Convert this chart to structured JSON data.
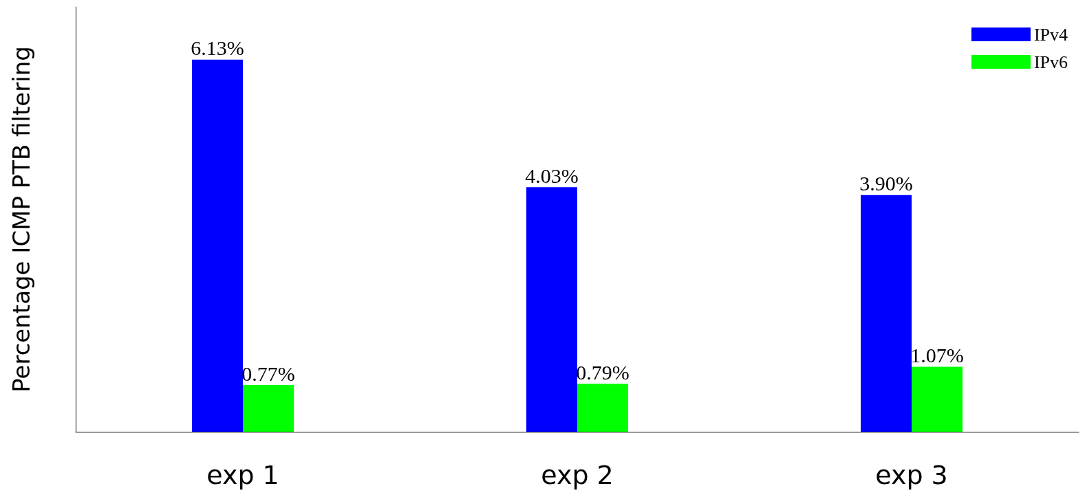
{
  "chart_data": {
    "type": "bar",
    "ylabel": "Percentage ICMP PTB filtering",
    "categories": [
      "exp 1",
      "exp 2",
      "exp 3"
    ],
    "series": [
      {
        "name": "IPv4",
        "color": "#0000ff",
        "values": [
          6.13,
          4.03,
          3.9
        ],
        "value_labels": [
          "6.13%",
          "4.03%",
          "3.90%"
        ]
      },
      {
        "name": "IPv6",
        "color": "#00ff00",
        "values": [
          0.77,
          0.79,
          1.07
        ],
        "value_labels": [
          "0.77%",
          "0.79%",
          "1.07%"
        ]
      }
    ],
    "legend": "top right",
    "grid": false,
    "tick_labels": "x"
  }
}
